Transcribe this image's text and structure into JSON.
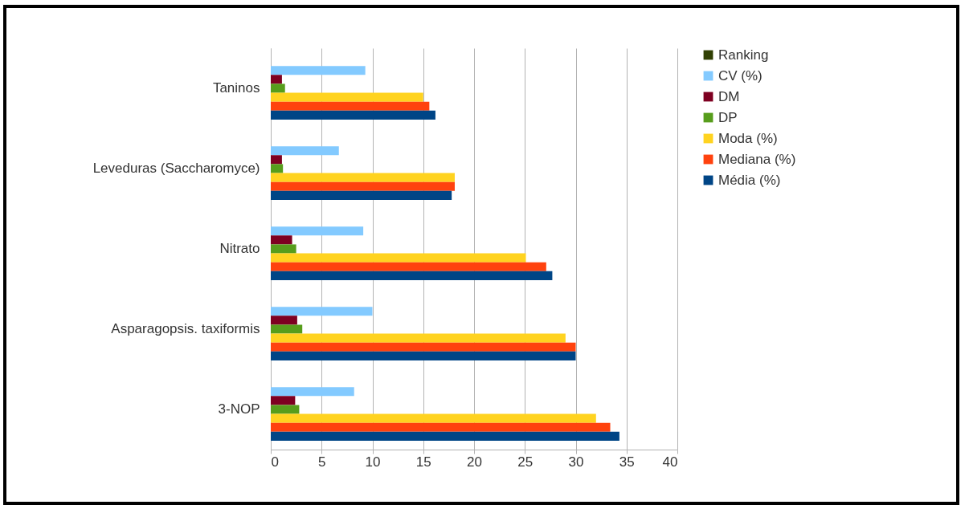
{
  "chart_data": {
    "type": "bar",
    "orientation": "horizontal",
    "categories": [
      "Taninos",
      "Leveduras (Saccharomyce)",
      "Nitrato",
      "Asparagopsis. taxiformis",
      "3-NOP"
    ],
    "series": [
      {
        "name": "Ranking",
        "color": "#314004",
        "values": [
          null,
          null,
          null,
          null,
          null
        ]
      },
      {
        "name": "CV (%)",
        "color": "#83caff",
        "values": [
          9.3,
          6.7,
          9.1,
          10.0,
          8.2
        ]
      },
      {
        "name": "DM",
        "color": "#7e0021",
        "values": [
          1.1,
          1.1,
          2.1,
          2.6,
          2.4
        ]
      },
      {
        "name": "DP",
        "color": "#579d1c",
        "values": [
          1.4,
          1.2,
          2.5,
          3.1,
          2.8
        ]
      },
      {
        "name": "Moda (%)",
        "color": "#ffd320",
        "values": [
          15.0,
          18.1,
          25.1,
          29.0,
          32.0
        ]
      },
      {
        "name": "Mediana (%)",
        "color": "#ff420e",
        "values": [
          15.6,
          18.1,
          27.1,
          30.0,
          33.4
        ]
      },
      {
        "name": "Média (%)",
        "color": "#004586",
        "values": [
          16.2,
          17.8,
          27.7,
          30.0,
          34.3
        ]
      }
    ],
    "xlim": [
      0,
      40
    ],
    "xticks": [
      0,
      5,
      10,
      15,
      20,
      25,
      30,
      35,
      40
    ],
    "grid": "x",
    "legend": "right"
  }
}
